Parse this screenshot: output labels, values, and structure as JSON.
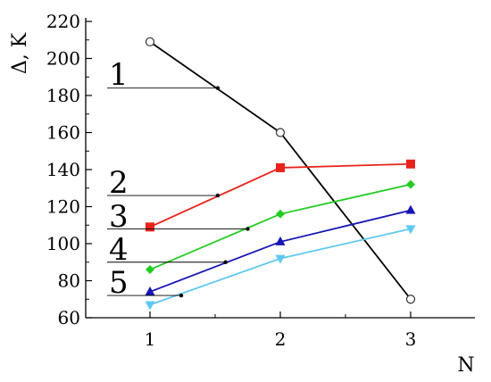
{
  "chart_data": {
    "type": "line",
    "title": "",
    "xlabel": "N",
    "ylabel": "Δ, K",
    "xlim": [
      0.5,
      3.5
    ],
    "ylim": [
      60,
      220
    ],
    "x_ticks": [
      1,
      2,
      3
    ],
    "y_ticks": [
      60,
      80,
      100,
      120,
      140,
      160,
      180,
      200,
      220
    ],
    "grid": false,
    "series": [
      {
        "name": "1",
        "x": [
          1,
          2,
          3
        ],
        "y": [
          209,
          160,
          70
        ],
        "color": "#000000",
        "marker": "open-circle",
        "leader": {
          "x": 1.52,
          "y": 184
        }
      },
      {
        "name": "2",
        "x": [
          1,
          2,
          3
        ],
        "y": [
          109,
          141,
          143
        ],
        "color": "#e8231b",
        "marker": "square",
        "leader": {
          "x": 1.52,
          "y": 126
        }
      },
      {
        "name": "3",
        "x": [
          1,
          2,
          3
        ],
        "y": [
          86,
          116,
          132
        ],
        "color": "#22cc22",
        "marker": "diamond",
        "leader": {
          "x": 1.75,
          "y": 108
        }
      },
      {
        "name": "4",
        "x": [
          1,
          2,
          3
        ],
        "y": [
          74,
          101,
          118
        ],
        "color": "#1515b5",
        "marker": "triangle-up",
        "leader": {
          "x": 1.58,
          "y": 90
        }
      },
      {
        "name": "5",
        "x": [
          1,
          2,
          3
        ],
        "y": [
          67,
          92,
          108
        ],
        "color": "#5fc8f0",
        "marker": "triangle-down",
        "leader": {
          "x": 1.24,
          "y": 72
        }
      }
    ]
  }
}
